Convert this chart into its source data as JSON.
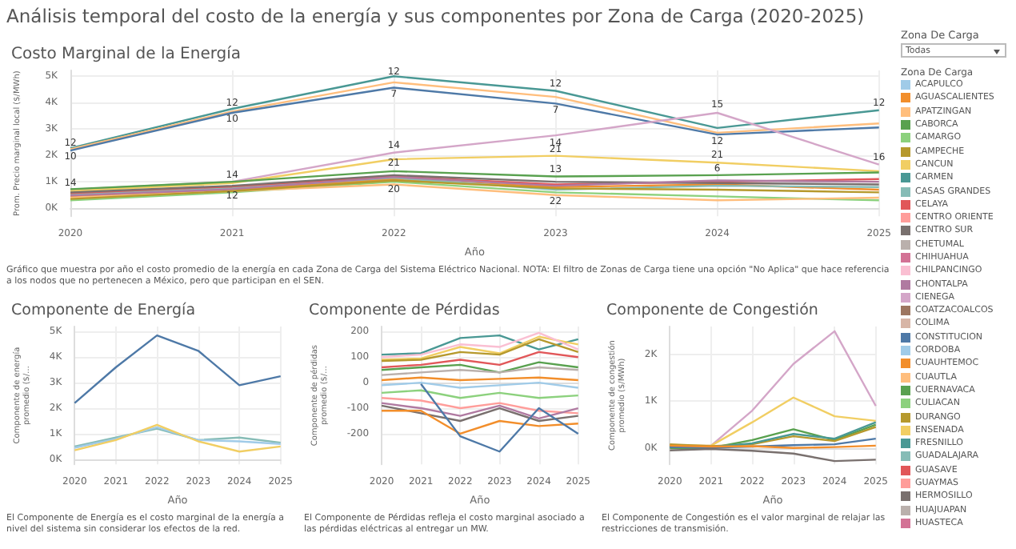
{
  "chart_data": [
    {
      "type": "line",
      "title": "Análisis temporal del costo de la energía y sus componentes por Zona de Carga (2020-2025)",
      "subtitle": "Costo Marginal de la Energía",
      "xlabel": "Año",
      "ylabel": "Prom. Precio marginal local ($/MWh)",
      "categories": [
        "2020",
        "2021",
        "2022",
        "2023",
        "2024",
        "2025"
      ],
      "ylim": [
        -300,
        5200
      ],
      "yticks": [
        {
          "value": 0,
          "label": "0K"
        },
        {
          "value": 1000,
          "label": "1K"
        },
        {
          "value": 2000,
          "label": "2K"
        },
        {
          "value": 3000,
          "label": "3K"
        },
        {
          "value": 4000,
          "label": "4K"
        },
        {
          "value": 5000,
          "label": "5K"
        }
      ],
      "grid": true,
      "annotations": [
        {
          "text": "12",
          "x": "2020",
          "y": 2450
        },
        {
          "text": "10",
          "x": "2020",
          "y": 1950
        },
        {
          "text": "14",
          "x": "2020",
          "y": 950
        },
        {
          "text": "12",
          "x": "2021",
          "y": 3950
        },
        {
          "text": "10",
          "x": "2021",
          "y": 3350
        },
        {
          "text": "14",
          "x": "2021",
          "y": 1250
        },
        {
          "text": "12",
          "x": "2021",
          "y": 450
        },
        {
          "text": "12",
          "x": "2022",
          "y": 5150
        },
        {
          "text": "7",
          "x": "2022",
          "y": 4300
        },
        {
          "text": "14",
          "x": "2022",
          "y": 2350
        },
        {
          "text": "21",
          "x": "2022",
          "y": 1700
        },
        {
          "text": "20",
          "x": "2022",
          "y": 700
        },
        {
          "text": "12",
          "x": "2023",
          "y": 4700
        },
        {
          "text": "7",
          "x": "2023",
          "y": 3700
        },
        {
          "text": "14",
          "x": "2023",
          "y": 2450
        },
        {
          "text": "21",
          "x": "2023",
          "y": 2200
        },
        {
          "text": "13",
          "x": "2023",
          "y": 1450
        },
        {
          "text": "22",
          "x": "2023",
          "y": 250
        },
        {
          "text": "15",
          "x": "2024",
          "y": 3900
        },
        {
          "text": "12",
          "x": "2024",
          "y": 2500
        },
        {
          "text": "21",
          "x": "2024",
          "y": 2000
        },
        {
          "text": "6",
          "x": "2024",
          "y": 1500
        },
        {
          "text": "12",
          "x": "2025",
          "y": 3950
        },
        {
          "text": "16",
          "x": "2025",
          "y": 1900
        },
        "Gráfico que muestra por año el costo promedio de la energía  en cada Zona de Carga del Sistema Eléctrico Nacional. NOTA: El filtro de Zonas de Carga tiene una opción \"No Aplica\" que hace referencia a los nodos  que no pertenecen a México, pero que participan en el SEN."
      ],
      "series": [
        {
          "color": "#499894",
          "values": [
            2270,
            3750,
            4980,
            4430,
            3030,
            3700
          ]
        },
        {
          "color": "#ffbe7d",
          "values": [
            2230,
            3650,
            4750,
            4200,
            2850,
            3200
          ]
        },
        {
          "color": "#4e79a7",
          "values": [
            2180,
            3600,
            4550,
            3950,
            2780,
            3050
          ]
        },
        {
          "color": "#d4a6c8",
          "values": [
            700,
            1000,
            2100,
            2750,
            3600,
            1650
          ]
        },
        {
          "color": "#f1ce63",
          "values": [
            650,
            950,
            1850,
            1980,
            1720,
            1400
          ]
        },
        {
          "color": "#59a14f",
          "values": [
            720,
            1000,
            1400,
            1200,
            1250,
            1350
          ]
        },
        {
          "color": "#f28e2b",
          "values": [
            450,
            700,
            1100,
            800,
            900,
            700
          ]
        },
        {
          "color": "#8cd17d",
          "values": [
            300,
            600,
            1000,
            600,
            450,
            300
          ]
        },
        {
          "color": "#ffbe7d",
          "values": [
            400,
            650,
            900,
            500,
            300,
            400
          ]
        },
        {
          "color": "#e15759",
          "values": [
            550,
            800,
            1200,
            900,
            1000,
            1100
          ]
        },
        {
          "color": "#79706e",
          "values": [
            600,
            850,
            1250,
            1000,
            950,
            900
          ]
        },
        {
          "color": "#86bcb6",
          "values": [
            500,
            750,
            1150,
            700,
            850,
            800
          ]
        },
        {
          "color": "#b6992d",
          "values": [
            350,
            650,
            1050,
            750,
            700,
            600
          ]
        },
        {
          "color": "#b07aa1",
          "values": [
            480,
            720,
            1180,
            850,
            1050,
            1000
          ]
        }
      ]
    },
    {
      "type": "line",
      "title": "Componente de Energía",
      "xlabel": "Año",
      "ylabel": "Componente de energía promedio ($/...",
      "categories": [
        "2020",
        "2021",
        "2022",
        "2023",
        "2024",
        "2025"
      ],
      "ylim": [
        -200,
        5200
      ],
      "yticks": [
        {
          "value": 0,
          "label": "0K"
        },
        {
          "value": 1000,
          "label": "1K"
        },
        {
          "value": 2000,
          "label": "2K"
        },
        {
          "value": 3000,
          "label": "3K"
        },
        {
          "value": 4000,
          "label": "4K"
        },
        {
          "value": 5000,
          "label": "5K"
        }
      ],
      "grid": true,
      "annotations": [
        "El Componente de Energía es el costo marginal de la energía a nivel del sistema sin considerar los efectos de la red."
      ],
      "series": [
        {
          "color": "#4e79a7",
          "values": [
            2200,
            3600,
            4850,
            4250,
            2900,
            3250
          ]
        },
        {
          "color": "#86bcb6",
          "values": [
            500,
            850,
            1200,
            750,
            850,
            650
          ]
        },
        {
          "color": "#a0cbe8",
          "values": [
            450,
            800,
            1250,
            750,
            700,
            600
          ]
        },
        {
          "color": "#f1ce63",
          "values": [
            350,
            750,
            1350,
            700,
            300,
            500
          ]
        }
      ]
    },
    {
      "type": "line",
      "title": "Componente de Pérdidas",
      "xlabel": "Año",
      "ylabel": "Componente de pérdidas promedio ($/...",
      "categories": [
        "2020",
        "2021",
        "2022",
        "2023",
        "2024",
        "2025"
      ],
      "ylim": [
        -320,
        220
      ],
      "yticks": [
        -200,
        -100,
        0,
        100,
        200
      ],
      "grid": true,
      "annotations": [
        "El Componente de Pérdidas refleja el costo marginal asociado a las pérdidas eléctricas al entregar un MW."
      ],
      "series": [
        {
          "color": "#499894",
          "values": [
            110,
            115,
            175,
            185,
            130,
            170
          ]
        },
        {
          "color": "#f1ce63",
          "values": [
            90,
            95,
            140,
            115,
            180,
            150
          ]
        },
        {
          "color": "#fabfd2",
          "values": [
            100,
            110,
            150,
            140,
            195,
            130
          ]
        },
        {
          "color": "#b6992d",
          "values": [
            85,
            90,
            120,
            110,
            170,
            120
          ]
        },
        {
          "color": "#e15759",
          "values": [
            60,
            70,
            90,
            70,
            120,
            100
          ]
        },
        {
          "color": "#59a14f",
          "values": [
            50,
            60,
            70,
            40,
            80,
            60
          ]
        },
        {
          "color": "#bab0ac",
          "values": [
            30,
            40,
            50,
            40,
            60,
            50
          ]
        },
        {
          "color": "#f28e2b",
          "values": [
            10,
            20,
            10,
            15,
            20,
            10
          ]
        },
        {
          "color": "#a0cbe8",
          "values": [
            -10,
            0,
            -20,
            -10,
            0,
            -20
          ]
        },
        {
          "color": "#8cd17d",
          "values": [
            -40,
            -30,
            -60,
            -40,
            -60,
            -50
          ]
        },
        {
          "color": "#ff9d9a",
          "values": [
            -60,
            -70,
            -100,
            -80,
            -110,
            -120
          ]
        },
        {
          "color": "#79706e",
          "values": [
            -90,
            -120,
            -150,
            -100,
            -150,
            -130
          ]
        },
        {
          "color": "#b07aa1",
          "values": [
            -80,
            -100,
            -130,
            -90,
            -140,
            -100
          ]
        },
        {
          "color": "#f28e2b",
          "values": [
            -110,
            -110,
            -200,
            -150,
            -170,
            -160
          ]
        },
        {
          "color": "#4e79a7",
          "values": [
            null,
            -5,
            -210,
            -270,
            -100,
            -200
          ]
        }
      ]
    },
    {
      "type": "line",
      "title": "Componente de Congestión",
      "xlabel": "Año",
      "ylabel": "Componente de congestión promedio ($/MWh)",
      "categories": [
        "2020",
        "2021",
        "2022",
        "2023",
        "2024",
        "2025"
      ],
      "ylim": [
        -350,
        2600
      ],
      "yticks": [
        {
          "value": 0,
          "label": "0K"
        },
        {
          "value": 1000,
          "label": "1K"
        },
        {
          "value": 2000,
          "label": "2K"
        }
      ],
      "grid": true,
      "annotations": [
        "El Componente de Congestión  es el valor marginal de relajar las restricciones de transmisión."
      ],
      "series": [
        {
          "color": "#d4a6c8",
          "values": [
            50,
            50,
            800,
            1800,
            2500,
            900
          ]
        },
        {
          "color": "#f1ce63",
          "values": [
            60,
            50,
            550,
            1080,
            680,
            580
          ]
        },
        {
          "color": "#59a14f",
          "values": [
            0,
            0,
            170,
            400,
            170,
            500
          ]
        },
        {
          "color": "#b6992d",
          "values": [
            80,
            40,
            80,
            250,
            150,
            450
          ]
        },
        {
          "color": "#499894",
          "values": [
            30,
            20,
            100,
            300,
            200,
            550
          ]
        },
        {
          "color": "#4e79a7",
          "values": [
            20,
            10,
            30,
            60,
            80,
            200
          ]
        },
        {
          "color": "#f28e2b",
          "values": [
            50,
            30,
            40,
            0,
            20,
            50
          ]
        },
        {
          "color": "#79706e",
          "values": [
            -50,
            -20,
            -60,
            -120,
            -280,
            -250
          ]
        }
      ]
    },
    {
      "type": "other",
      "title": "Zona De Carga",
      "annotations": [
        "Todas"
      ],
      "legend_title": "Zona De Carga",
      "categories": [
        "ACAPULCO",
        "AGUASCALIENTES",
        "APATZINGAN",
        "CABORCA",
        "CAMARGO",
        "CAMPECHE",
        "CANCUN",
        "CARMEN",
        "CASAS GRANDES",
        "CELAYA",
        "CENTRO ORIENTE",
        "CENTRO SUR",
        "CHETUMAL",
        "CHIHUAHUA",
        "CHILPANCINGO",
        "CHONTALPA",
        "CIENEGA",
        "COATZACOALCOS",
        "COLIMA",
        "CONSTITUCION",
        "CORDOBA",
        "CUAUHTEMOC",
        "CUAUTLA",
        "CUERNAVACA",
        "CULIACAN",
        "DURANGO",
        "ENSENADA",
        "FRESNILLO",
        "GUADALAJARA",
        "GUASAVE",
        "GUAYMAS",
        "HERMOSILLO",
        "HUAJUAPAN",
        "HUASTECA"
      ],
      "colors": [
        "#a0cbe8",
        "#f28e2b",
        "#ffbe7d",
        "#59a14f",
        "#8cd17d",
        "#b6992d",
        "#f1ce63",
        "#499894",
        "#86bcb6",
        "#e15759",
        "#ff9d9a",
        "#79706e",
        "#bab0ac",
        "#d37295",
        "#fabfd2",
        "#b07aa1",
        "#d4a6c8",
        "#9d7660",
        "#d7b5a6",
        "#4e79a7",
        "#a0cbe8",
        "#f28e2b",
        "#ffbe7d",
        "#59a14f",
        "#8cd17d",
        "#b6992d",
        "#f1ce63",
        "#499894",
        "#86bcb6",
        "#e15759",
        "#ff9d9a",
        "#79706e",
        "#bab0ac",
        "#d37295"
      ]
    }
  ]
}
